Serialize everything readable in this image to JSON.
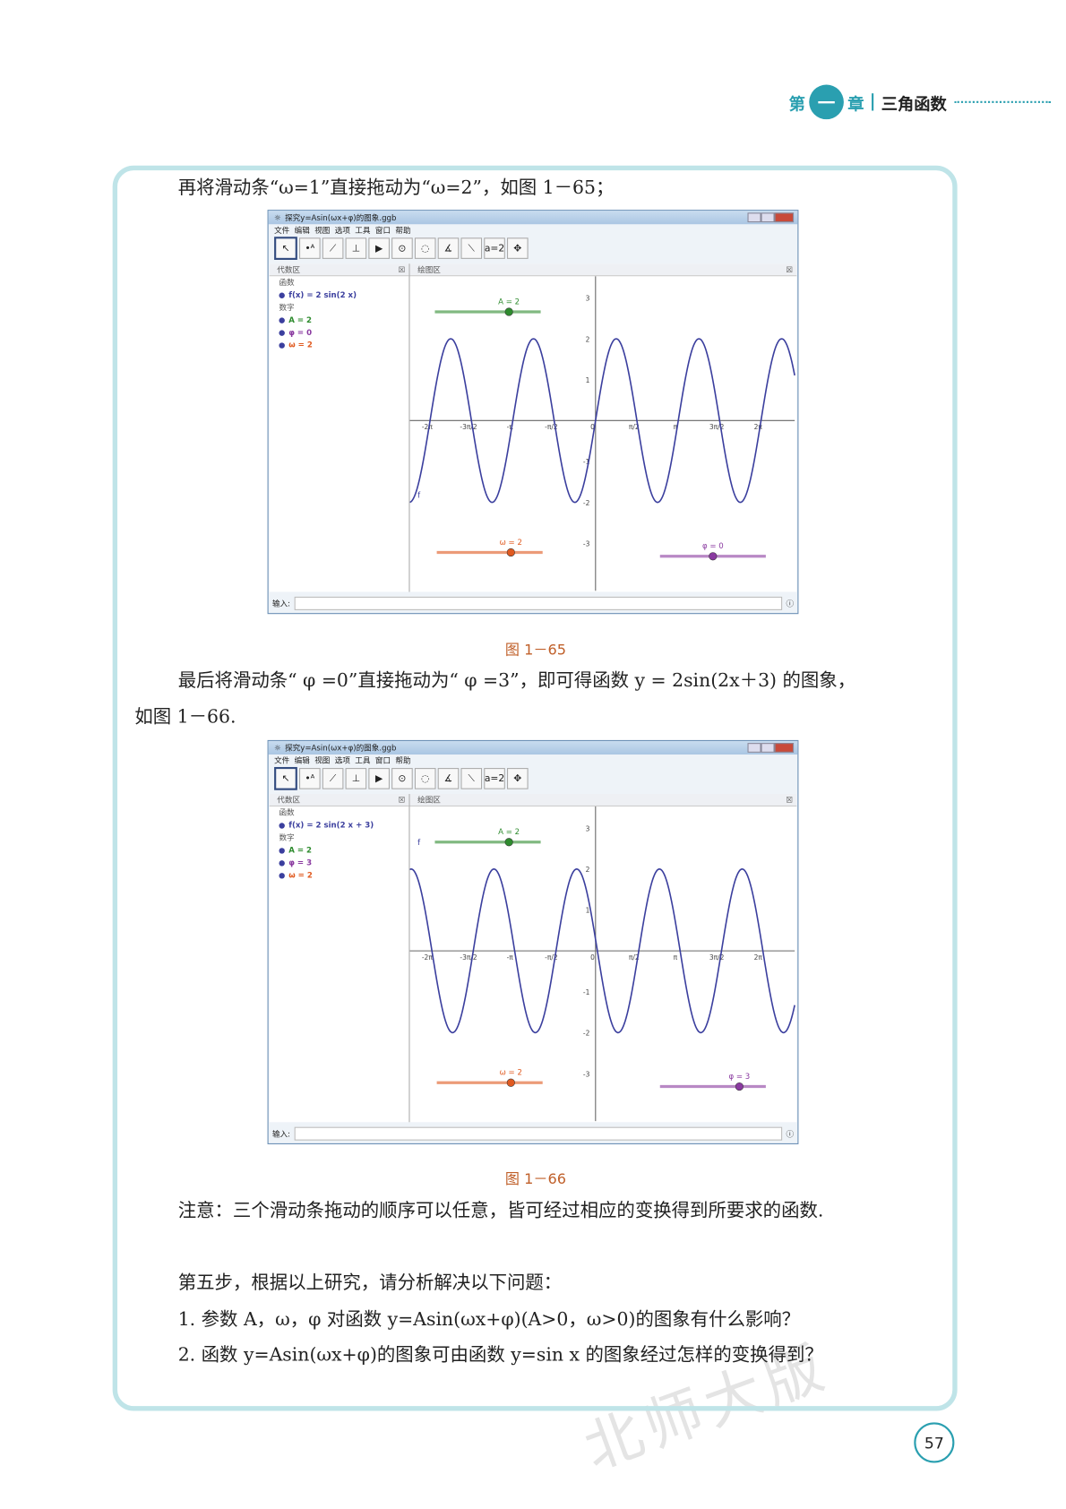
{
  "header": {
    "chapter_prefix": "第",
    "chapter_num": "一",
    "chapter_suffix": "章",
    "chapter_title": "三角函数"
  },
  "text": {
    "p1": "再将滑动条“ω=1”直接拖动为“ω=2”，如图 1－65；",
    "p2a": "最后将滑动条“ φ =0”直接拖动为“ φ =3”，即可得函数 y = 2sin(2x＋3) 的图象，",
    "p2b": "如图 1－66.",
    "note": "注意：三个滑动条拖动的顺序可以任意，皆可经过相应的变换得到所要求的函数.",
    "step5": "第五步，根据以上研究，请分析解决以下问题：",
    "q1": "1. 参数 A，ω，φ 对函数 y=Asin(ωx+φ)(A>0，ω>0)的图象有什么影响？",
    "q2": "2. 函数 y=Asin(ωx+φ)的图象可由函数 y=sin x 的图象经过怎样的变换得到？"
  },
  "figures": [
    {
      "caption": "图 1－65",
      "title": "探究y=Asin(ωx+φ)的图象.ggb",
      "menu": [
        "文件",
        "编辑",
        "视图",
        "选项",
        "工具",
        "窗口",
        "帮助"
      ],
      "algebra_header": "代数区",
      "graphics_header": "绘图区",
      "group_func": "函数",
      "group_num": "数字",
      "function": "f(x) = 2 sin(2 x)",
      "A": "A = 2",
      "phi": "φ = 0",
      "omega": "ω = 2",
      "params": {
        "A": 2,
        "omega": 2,
        "phi": 0
      },
      "slider_A": "A = 2",
      "slider_omega": "ω = 2",
      "slider_phi": "φ = 0",
      "curve_label": "f",
      "input_label": "输入:"
    },
    {
      "caption": "图 1－66",
      "title": "探究y=Asin(ωx+φ)的图象.ggb",
      "menu": [
        "文件",
        "编辑",
        "视图",
        "选项",
        "工具",
        "窗口",
        "帮助"
      ],
      "algebra_header": "代数区",
      "graphics_header": "绘图区",
      "group_func": "函数",
      "group_num": "数字",
      "function": "f(x) = 2 sin(2 x + 3)",
      "A": "A = 2",
      "phi": "φ = 3",
      "omega": "ω = 2",
      "params": {
        "A": 2,
        "omega": 2,
        "phi": 3
      },
      "slider_A": "A = 2",
      "slider_omega": "ω = 2",
      "slider_phi": "φ = 3",
      "curve_label": "f",
      "input_label": "输入:"
    }
  ],
  "axis": {
    "x_ticks": [
      "-2π",
      "-3π/2",
      "-π",
      "-π/2",
      "0",
      "π/2",
      "π",
      "3π/2",
      "2π"
    ],
    "y_ticks": [
      "3",
      "2",
      "1",
      "-1",
      "-2",
      "-3"
    ]
  },
  "tools": [
    "select",
    "point",
    "line",
    "perpendicular",
    "polygon",
    "circle",
    "conic",
    "angle",
    "reflect",
    "slider",
    "move-view"
  ],
  "page_number": "57",
  "watermark": "北师大版",
  "colors": {
    "accent": "#2a9fb0",
    "curve": "#3b3f9e",
    "slider_A": "#2e8b2e",
    "slider_omega": "#e05a20",
    "slider_phi": "#8a3aa0"
  }
}
